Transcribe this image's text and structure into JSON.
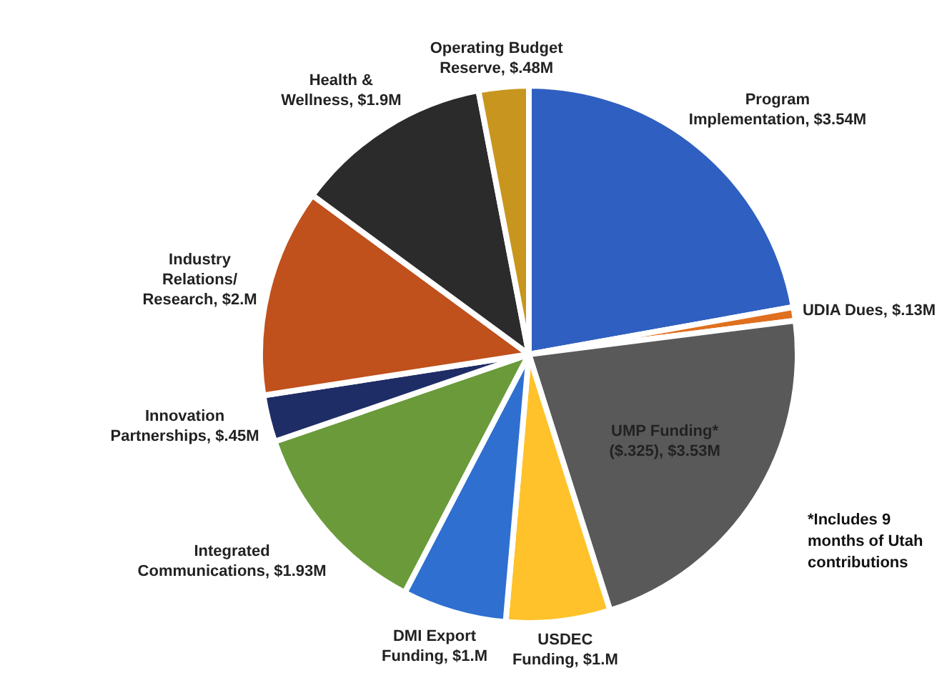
{
  "chart_data": {
    "type": "pie",
    "categories": [
      "Program Implementation",
      "UDIA Dues",
      "UMP Funding* ($.325)",
      "USDEC Funding",
      "DMI Export Funding",
      "Integrated Communications",
      "Innovation Partnerships",
      "Industry Relations/ Research",
      "Health & Wellness",
      "Operating Budget Reserve"
    ],
    "values": [
      3.54,
      0.13,
      3.53,
      1,
      1,
      1.93,
      0.45,
      2,
      1.9,
      0.48
    ],
    "value_labels": [
      "$3.54M",
      "$.13M",
      "$3.53M",
      "$1.M",
      "$1.M",
      "$1.93M",
      "$.45M",
      "$2.M",
      "$1.9M",
      "$.48M"
    ],
    "colors": [
      "#2f5fc0",
      "#e0701f",
      "#595959",
      "#ffc22a",
      "#2f6fd0",
      "#6a9a3a",
      "#1f2d66",
      "#c0501c",
      "#2b2b2b",
      "#c8961e"
    ],
    "annotations": [
      "*Includes 9 months of Utah contributions"
    ],
    "legend": false
  }
}
